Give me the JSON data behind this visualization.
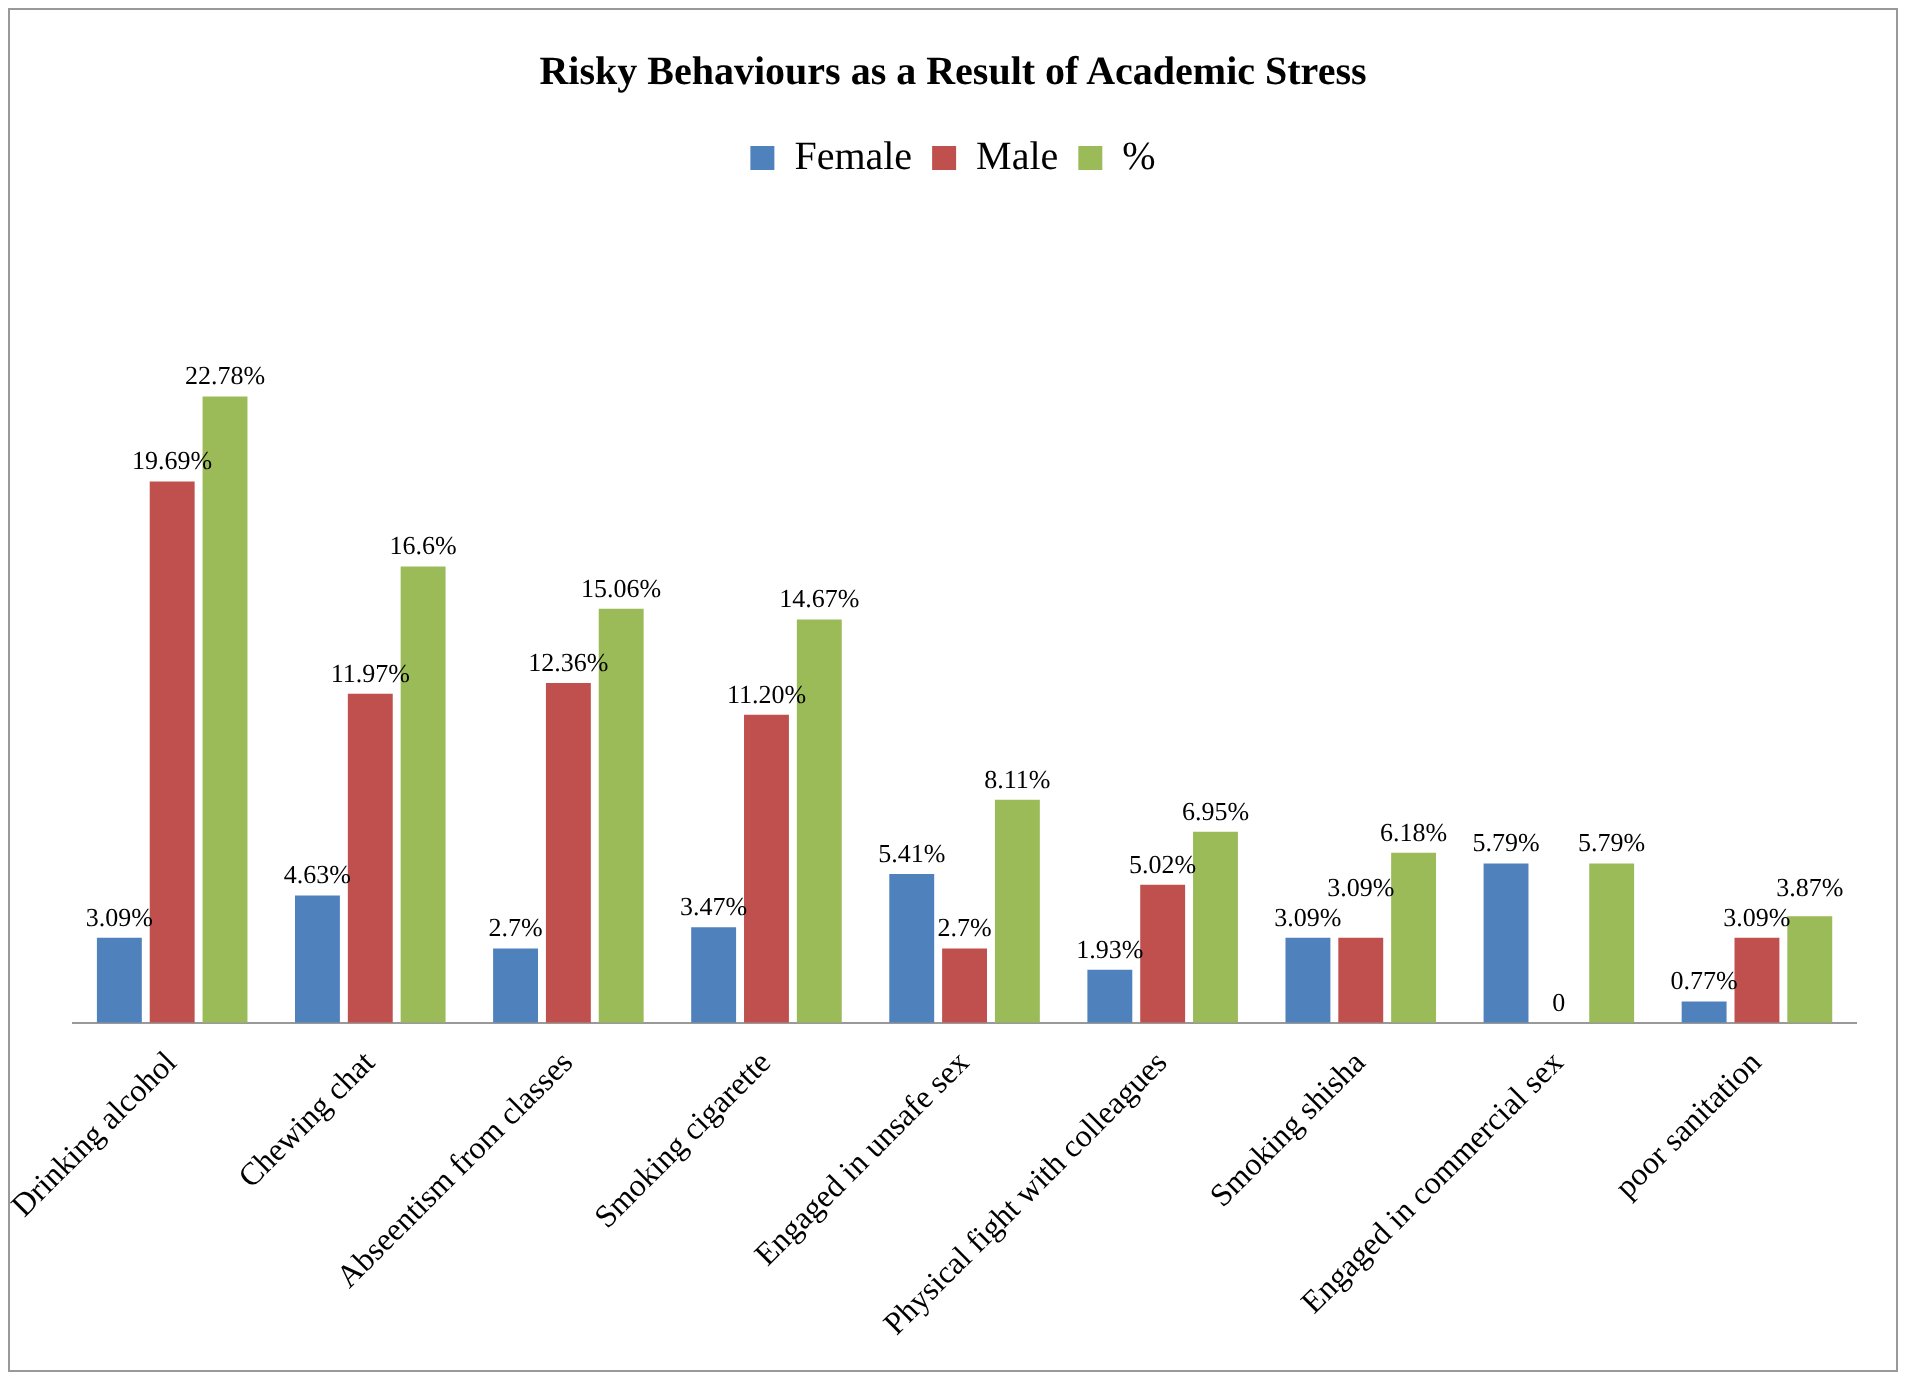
{
  "chart_data": {
    "type": "bar",
    "title": "Risky Behaviours as a Result of Academic Stress",
    "categories": [
      "Drinking alcohol",
      "Chewing chat",
      "Abseentism from classes",
      "Smoking cigarette",
      "Engaged in unsafe sex",
      "Physical fight with colleagues",
      "Smoking shisha",
      "Engaged in commercial sex",
      "poor sanitation"
    ],
    "series": [
      {
        "name": "Female",
        "color": "#4f81bd",
        "values": [
          3.09,
          4.63,
          2.7,
          3.47,
          5.41,
          1.93,
          3.09,
          5.79,
          0.77
        ],
        "value_labels": [
          "3.09%",
          "4.63%",
          "2.7%",
          "3.47%",
          "5.41%",
          "1.93%",
          "3.09%",
          "5.79%",
          "0.77%"
        ]
      },
      {
        "name": "Male",
        "color": "#c0504d",
        "values": [
          19.69,
          11.97,
          12.36,
          11.2,
          2.7,
          5.02,
          3.09,
          0,
          3.09
        ],
        "value_labels": [
          "19.69%",
          "11.97%",
          "12.36%",
          "11.20%",
          "2.7%",
          "5.02%",
          "3.09%",
          "0",
          "3.09%"
        ]
      },
      {
        "name": "%",
        "color": "#9bbb59",
        "values": [
          22.78,
          16.6,
          15.06,
          14.67,
          8.11,
          6.95,
          6.18,
          5.79,
          3.87
        ],
        "value_labels": [
          "22.78%",
          "16.6%",
          "15.06%",
          "14.67%",
          "8.11%",
          "6.95%",
          "6.18%",
          "5.79%",
          "3.87%"
        ]
      }
    ],
    "legend": "top",
    "grid": false,
    "tick_labels": "x"
  }
}
